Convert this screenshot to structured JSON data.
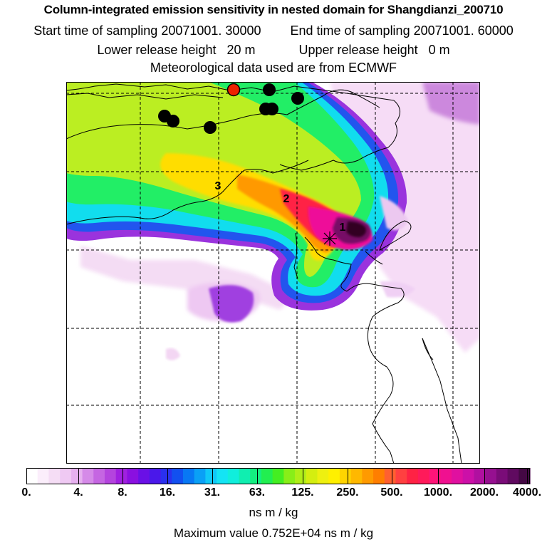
{
  "title": "Column-integrated emission sensitivity in nested domain for Shangdianzi_200710",
  "sampling": {
    "start_label": "Start time of sampling",
    "start_value": "20071001. 30000",
    "end_label": "End time of sampling",
    "end_value": "20071001. 60000"
  },
  "release": {
    "lower_label": "Lower release height",
    "lower_value": "20 m",
    "upper_label": "Upper release height",
    "upper_value": "0 m"
  },
  "met_text": "Meteorological data used are from ECMWF",
  "map": {
    "site_marker_icon": "star-cross-icon",
    "labels": [
      {
        "text": "1"
      },
      {
        "text": "2"
      },
      {
        "text": "3"
      }
    ],
    "point_colors": {
      "black": "#000000",
      "red": "#ee2200"
    }
  },
  "colorbar": {
    "ticks": [
      "0.",
      "4.",
      "8.",
      "16.",
      "31.",
      "63.",
      "125.",
      "250.",
      "500.",
      "1000.",
      "2000.",
      "4000."
    ],
    "units": "ns m / kg"
  },
  "max_text": "Maximum value  0.752E+04 ns m / kg"
}
